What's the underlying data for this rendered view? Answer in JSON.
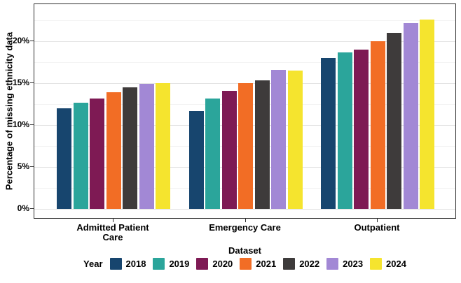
{
  "chart_data": {
    "type": "bar",
    "title": "",
    "xlabel": "Dataset",
    "ylabel": "Percentage of missing ethnicity data",
    "categories": [
      "Admitted Patient\nCare",
      "Emergency Care",
      "Outpatient"
    ],
    "series": [
      {
        "name": "2018",
        "color": "#17456E",
        "values": [
          12.0,
          11.7,
          18.0
        ]
      },
      {
        "name": "2019",
        "color": "#2BA59B",
        "values": [
          12.7,
          13.2,
          18.7
        ]
      },
      {
        "name": "2020",
        "color": "#7E1A54",
        "values": [
          13.2,
          14.1,
          19.0
        ]
      },
      {
        "name": "2021",
        "color": "#F26D25",
        "values": [
          13.9,
          15.0,
          20.0
        ]
      },
      {
        "name": "2022",
        "color": "#3E3B3B",
        "values": [
          14.5,
          15.3,
          21.0
        ]
      },
      {
        "name": "2023",
        "color": "#A288D5",
        "values": [
          14.9,
          16.6,
          22.2
        ]
      },
      {
        "name": "2024",
        "color": "#F5E42E",
        "values": [
          15.0,
          16.5,
          22.6
        ]
      }
    ],
    "y_ticks": [
      "0%",
      "5%",
      "10%",
      "15%",
      "20%"
    ],
    "y_major_values": [
      0,
      5,
      10,
      15,
      20
    ],
    "y_minor_values": [
      2.5,
      7.5,
      12.5,
      17.5,
      22.5
    ],
    "ylim": [
      0,
      24.4
    ],
    "grid": true,
    "legend_title": "Year",
    "legend_position": "bottom"
  }
}
